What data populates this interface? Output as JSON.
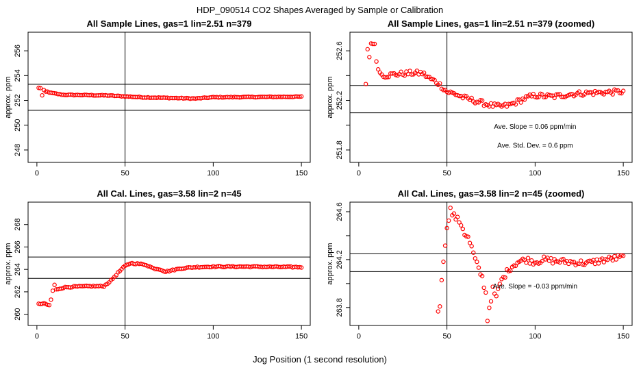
{
  "figure": {
    "title": "HDP_090514  CO2 Shapes Averaged by Sample or Calibration",
    "xlabel": "Jog Position (1 second resolution)",
    "point_color": "#ff0000",
    "line_color": "#000000"
  },
  "chart_data": [
    {
      "type": "scatter",
      "title": "All Sample Lines, gas=1 lin=2.51 n=379",
      "ylabel": "approx. ppm",
      "xlim": [
        -5,
        155
      ],
      "ylim": [
        247,
        257.5
      ],
      "xticks": [
        0,
        50,
        100,
        150
      ],
      "xtick_labels": [
        "0",
        "50",
        "100",
        "150"
      ],
      "yticks": [
        248,
        250,
        252,
        254,
        256
      ],
      "ytick_labels": [
        "248",
        "250",
        "252",
        "254",
        "256"
      ],
      "vline": 50,
      "hlines": [
        251.2,
        253.3
      ],
      "annotations": [],
      "x_range": [
        1,
        150
      ],
      "anchors": [
        [
          1,
          253
        ],
        [
          2,
          253
        ],
        [
          3,
          252.4
        ],
        [
          4,
          252.8
        ],
        [
          5,
          252.7
        ],
        [
          6,
          252.7
        ],
        [
          8,
          252.6
        ],
        [
          15,
          252.45
        ],
        [
          40,
          252.4
        ],
        [
          60,
          252.25
        ],
        [
          90,
          252.15
        ],
        [
          100,
          252.25
        ],
        [
          150,
          252.3
        ]
      ],
      "noise": 0.03
    },
    {
      "type": "scatter",
      "title": "All Sample Lines, gas=1 lin=2.51 n=379 (zoomed)",
      "ylabel": "approx. ppm",
      "xlim": [
        -5,
        155
      ],
      "ylim": [
        251.7,
        252.75
      ],
      "xticks": [
        0,
        50,
        100,
        150
      ],
      "xtick_labels": [
        "0",
        "50",
        "100",
        "150"
      ],
      "yticks": [
        251.8,
        252.2,
        252.6
      ],
      "ytick_labels": [
        "251.8",
        "252.2",
        "252.6"
      ],
      "minor_yticks": [
        252.0,
        252.4
      ],
      "vline": 50,
      "hlines": [
        252.1,
        252.32
      ],
      "annotations": [
        {
          "label": "Ave. Slope =  0.06  ppm/min",
          "x": 100,
          "y": 251.97
        },
        {
          "label": "Ave. Std. Dev. =  0.6  ppm",
          "x": 100,
          "y": 251.82
        }
      ],
      "x_range": [
        4,
        150
      ],
      "anchors": [
        [
          4,
          252.32
        ],
        [
          5,
          252.62
        ],
        [
          6,
          252.55
        ],
        [
          7,
          252.66
        ],
        [
          8,
          252.67
        ],
        [
          9,
          252.64
        ],
        [
          10,
          252.52
        ],
        [
          12,
          252.42
        ],
        [
          15,
          252.4
        ],
        [
          20,
          252.41
        ],
        [
          30,
          252.42
        ],
        [
          36,
          252.42
        ],
        [
          40,
          252.38
        ],
        [
          45,
          252.34
        ],
        [
          50,
          252.27
        ],
        [
          55,
          252.25
        ],
        [
          60,
          252.22
        ],
        [
          65,
          252.2
        ],
        [
          70,
          252.18
        ],
        [
          75,
          252.16
        ],
        [
          80,
          252.15
        ],
        [
          85,
          252.16
        ],
        [
          90,
          252.19
        ],
        [
          95,
          252.22
        ],
        [
          100,
          252.24
        ],
        [
          110,
          252.23
        ],
        [
          120,
          252.25
        ],
        [
          130,
          252.26
        ],
        [
          150,
          252.27
        ]
      ],
      "noise": 0.02
    },
    {
      "type": "scatter",
      "title": "All Cal. Lines, gas=3.58 lin=2 n=45",
      "ylabel": "approx. ppm",
      "xlim": [
        -5,
        155
      ],
      "ylim": [
        259,
        270
      ],
      "xticks": [
        0,
        50,
        100,
        150
      ],
      "xtick_labels": [
        "0",
        "50",
        "100",
        "150"
      ],
      "yticks": [
        260,
        262,
        264,
        266,
        268
      ],
      "ytick_labels": [
        "260",
        "262",
        "264",
        "266",
        "268"
      ],
      "vline": 50,
      "hlines": [
        263.2,
        265.1
      ],
      "annotations": [],
      "x_range": [
        1,
        150
      ],
      "anchors": [
        [
          1,
          260.9
        ],
        [
          4,
          260.95
        ],
        [
          7,
          260.8
        ],
        [
          8,
          261.3
        ],
        [
          9,
          262.1
        ],
        [
          10,
          262.6
        ],
        [
          11,
          262.2
        ],
        [
          13,
          262.3
        ],
        [
          16,
          262.4
        ],
        [
          20,
          262.45
        ],
        [
          30,
          262.5
        ],
        [
          38,
          262.5
        ],
        [
          42,
          263.0
        ],
        [
          46,
          263.7
        ],
        [
          50,
          264.3
        ],
        [
          53,
          264.55
        ],
        [
          58,
          264.5
        ],
        [
          62,
          264.4
        ],
        [
          66,
          264.1
        ],
        [
          70,
          264.0
        ],
        [
          73,
          263.8
        ],
        [
          76,
          263.9
        ],
        [
          82,
          264.1
        ],
        [
          90,
          264.2
        ],
        [
          100,
          264.25
        ],
        [
          120,
          264.25
        ],
        [
          150,
          264.2
        ]
      ],
      "noise": 0.05
    },
    {
      "type": "scatter",
      "title": "All Cal. Lines, gas=3.58 lin=2 n=45 (zoomed)",
      "ylabel": "approx. ppm",
      "xlim": [
        -5,
        155
      ],
      "ylim": [
        263.65,
        264.68
      ],
      "xticks": [
        0,
        50,
        100,
        150
      ],
      "xtick_labels": [
        "0",
        "50",
        "100",
        "150"
      ],
      "yticks": [
        263.8,
        264.2,
        264.6
      ],
      "ytick_labels": [
        "263.8",
        "264.2",
        "264.6"
      ],
      "minor_yticks": [
        264.0,
        264.4
      ],
      "vline": 50,
      "hlines": [
        264.1,
        264.25
      ],
      "annotations": [
        {
          "label": "Ave. Slope =  -0.03  ppm/min",
          "x": 100,
          "y": 263.96
        }
      ],
      "x_range": [
        45,
        150
      ],
      "anchors": [
        [
          45,
          263.75
        ],
        [
          46,
          263.82
        ],
        [
          47,
          264.05
        ],
        [
          48,
          264.2
        ],
        [
          49,
          264.3
        ],
        [
          50,
          264.48
        ],
        [
          51,
          264.55
        ],
        [
          52,
          264.62
        ],
        [
          53,
          264.58
        ],
        [
          55,
          264.55
        ],
        [
          58,
          264.5
        ],
        [
          60,
          264.42
        ],
        [
          62,
          264.38
        ],
        [
          64,
          264.3
        ],
        [
          66,
          264.2
        ],
        [
          68,
          264.12
        ],
        [
          70,
          264.05
        ],
        [
          72,
          263.92
        ],
        [
          73,
          263.7
        ],
        [
          74,
          263.8
        ],
        [
          76,
          263.95
        ],
        [
          78,
          263.88
        ],
        [
          80,
          264.0
        ],
        [
          82,
          264.05
        ],
        [
          85,
          264.12
        ],
        [
          90,
          264.18
        ],
        [
          95,
          264.2
        ],
        [
          100,
          264.18
        ],
        [
          105,
          264.2
        ],
        [
          110,
          264.19
        ],
        [
          120,
          264.18
        ],
        [
          130,
          264.17
        ],
        [
          140,
          264.2
        ],
        [
          150,
          264.22
        ]
      ],
      "noise": 0.025
    }
  ]
}
